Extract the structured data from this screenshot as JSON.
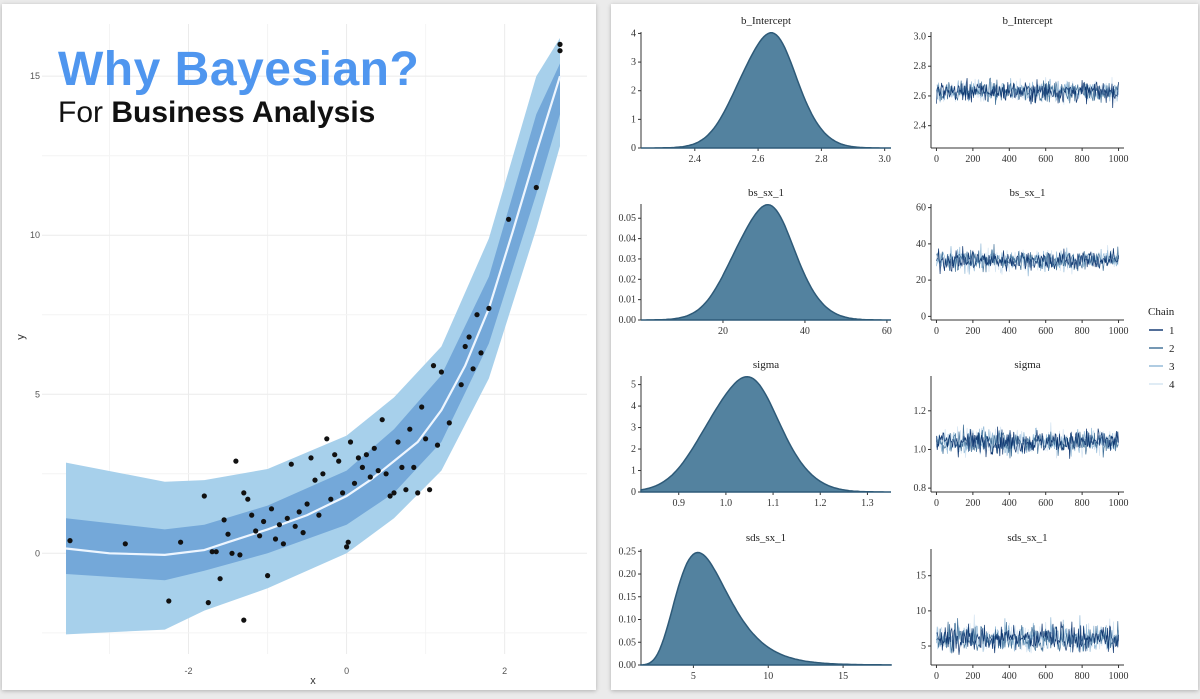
{
  "headline": {
    "main": "Why Bayesian?",
    "sub_prefix": "For ",
    "sub_bold": "Business Analysis"
  },
  "colors": {
    "outer_band": "#a7d0eb",
    "inner_band": "#74a8d9",
    "fit_line": "#eef6ff",
    "points": "#111111",
    "density_fill": "#53829f",
    "density_line": "#2e5a78",
    "chain_colors": [
      "#08306b",
      "#3a6b95",
      "#8fb7d6",
      "#d2e3f1"
    ],
    "headline_blue": "#4f96ef"
  },
  "chart_data": [
    {
      "id": "regression",
      "type": "scatter",
      "xlabel": "x",
      "ylabel": "y",
      "xlim": [
        -3.55,
        2.7
      ],
      "ylim": [
        -2.6,
        16.2
      ],
      "x_ticks": [
        -2,
        0,
        2
      ],
      "y_ticks": [
        0,
        5,
        10,
        15
      ],
      "grid": true,
      "fit_line": [
        [
          -3.55,
          0.15
        ],
        [
          -3.0,
          0.0
        ],
        [
          -2.3,
          -0.05
        ],
        [
          -1.8,
          0.1
        ],
        [
          -1.5,
          0.35
        ],
        [
          -1.0,
          0.75
        ],
        [
          -0.5,
          1.2
        ],
        [
          0.0,
          1.8
        ],
        [
          0.3,
          2.3
        ],
        [
          0.6,
          2.9
        ],
        [
          0.9,
          3.5
        ],
        [
          1.2,
          4.5
        ],
        [
          1.5,
          5.9
        ],
        [
          1.8,
          7.7
        ],
        [
          2.1,
          10.1
        ],
        [
          2.4,
          12.6
        ],
        [
          2.7,
          15.0
        ]
      ],
      "inner_band": [
        [
          -3.55,
          -0.65,
          1.1
        ],
        [
          -2.3,
          -0.85,
          0.75
        ],
        [
          -1.8,
          -0.55,
          0.9
        ],
        [
          -1.0,
          0.0,
          1.5
        ],
        [
          0.0,
          0.9,
          2.6
        ],
        [
          0.6,
          1.9,
          3.9
        ],
        [
          1.2,
          3.5,
          5.6
        ],
        [
          1.8,
          6.6,
          8.7
        ],
        [
          2.4,
          11.3,
          13.8
        ],
        [
          2.7,
          13.8,
          15.4
        ]
      ],
      "outer_band": [
        [
          -3.55,
          -2.55,
          2.85
        ],
        [
          -2.3,
          -2.4,
          2.25
        ],
        [
          -1.8,
          -1.8,
          2.3
        ],
        [
          -1.0,
          -1.1,
          2.65
        ],
        [
          0.0,
          0.0,
          3.7
        ],
        [
          0.6,
          1.1,
          4.9
        ],
        [
          1.2,
          2.6,
          6.5
        ],
        [
          1.8,
          5.5,
          9.9
        ],
        [
          2.4,
          10.2,
          15.0
        ],
        [
          2.7,
          12.8,
          16.2
        ]
      ],
      "points": [
        [
          -3.5,
          0.4
        ],
        [
          -2.8,
          0.3
        ],
        [
          -2.25,
          -1.5
        ],
        [
          -2.1,
          0.35
        ],
        [
          -1.8,
          1.8
        ],
        [
          -1.75,
          -1.55
        ],
        [
          -1.7,
          0.05
        ],
        [
          -1.65,
          0.05
        ],
        [
          -1.6,
          -0.8
        ],
        [
          -1.55,
          1.05
        ],
        [
          -1.5,
          0.6
        ],
        [
          -1.45,
          0.0
        ],
        [
          -1.4,
          2.9
        ],
        [
          -1.35,
          -0.05
        ],
        [
          -1.3,
          -2.1
        ],
        [
          -1.3,
          1.9
        ],
        [
          -1.25,
          1.7
        ],
        [
          -1.2,
          1.2
        ],
        [
          -1.15,
          0.7
        ],
        [
          -1.1,
          0.55
        ],
        [
          -1.05,
          1.0
        ],
        [
          -1.0,
          -0.7
        ],
        [
          -0.95,
          1.4
        ],
        [
          -0.9,
          0.45
        ],
        [
          -0.85,
          0.9
        ],
        [
          -0.8,
          0.3
        ],
        [
          -0.75,
          1.1
        ],
        [
          -0.7,
          2.8
        ],
        [
          -0.65,
          0.85
        ],
        [
          -0.6,
          1.3
        ],
        [
          -0.55,
          0.65
        ],
        [
          -0.5,
          1.55
        ],
        [
          -0.45,
          3.0
        ],
        [
          -0.4,
          2.3
        ],
        [
          -0.35,
          1.2
        ],
        [
          -0.3,
          2.5
        ],
        [
          -0.25,
          3.6
        ],
        [
          -0.2,
          1.7
        ],
        [
          -0.15,
          3.1
        ],
        [
          -0.1,
          2.9
        ],
        [
          -0.05,
          1.9
        ],
        [
          0.0,
          0.2
        ],
        [
          0.02,
          0.35
        ],
        [
          0.05,
          3.5
        ],
        [
          0.1,
          2.2
        ],
        [
          0.15,
          3.0
        ],
        [
          0.2,
          2.7
        ],
        [
          0.25,
          3.1
        ],
        [
          0.3,
          2.4
        ],
        [
          0.35,
          3.3
        ],
        [
          0.4,
          2.6
        ],
        [
          0.45,
          4.2
        ],
        [
          0.5,
          2.5
        ],
        [
          0.55,
          1.8
        ],
        [
          0.6,
          1.9
        ],
        [
          0.65,
          3.5
        ],
        [
          0.7,
          2.7
        ],
        [
          0.75,
          2.0
        ],
        [
          0.8,
          3.9
        ],
        [
          0.85,
          2.7
        ],
        [
          0.9,
          1.9
        ],
        [
          0.95,
          4.6
        ],
        [
          1.0,
          3.6
        ],
        [
          1.05,
          2.0
        ],
        [
          1.1,
          5.9
        ],
        [
          1.15,
          3.4
        ],
        [
          1.2,
          5.7
        ],
        [
          1.3,
          4.1
        ],
        [
          1.45,
          5.3
        ],
        [
          1.5,
          6.5
        ],
        [
          1.55,
          6.8
        ],
        [
          1.6,
          5.8
        ],
        [
          1.65,
          7.5
        ],
        [
          1.7,
          6.3
        ],
        [
          1.8,
          7.7
        ],
        [
          2.05,
          10.5
        ],
        [
          2.4,
          11.5
        ],
        [
          2.7,
          15.8
        ],
        [
          2.7,
          16.0
        ]
      ]
    },
    {
      "id": "density-b-intercept",
      "type": "area",
      "title": "b_Intercept",
      "xlim": [
        2.23,
        3.02
      ],
      "ylim": [
        0,
        4.05
      ],
      "x_ticks": [
        2.4,
        2.6,
        2.8,
        3.0
      ],
      "x_tick_labels": [
        "2.4",
        "2.6",
        "2.8",
        "3.0"
      ],
      "y_ticks": [
        0,
        1,
        2,
        3,
        4
      ],
      "y_tick_labels": [
        "0",
        "1",
        "2",
        "3",
        "4"
      ],
      "mean": 2.63,
      "sd": 0.09
    },
    {
      "id": "trace-b-intercept",
      "type": "line",
      "title": "b_Intercept",
      "xlim": [
        -30,
        1030
      ],
      "ylim": [
        2.25,
        3.03
      ],
      "x_ticks": [
        0,
        200,
        400,
        600,
        800,
        1000
      ],
      "x_tick_labels": [
        "0",
        "200",
        "400",
        "600",
        "800",
        "1000"
      ],
      "y_ticks": [
        2.4,
        2.6,
        2.8,
        3.0
      ],
      "y_tick_labels": [
        "2.4",
        "2.6",
        "2.8",
        "3.0"
      ],
      "center": 2.63,
      "spread": 0.09
    },
    {
      "id": "density-bs-sx-1",
      "type": "area",
      "title": "bs_sx_1",
      "xlim": [
        0,
        61
      ],
      "ylim": [
        0,
        0.057
      ],
      "x_ticks": [
        20,
        40,
        60
      ],
      "x_tick_labels": [
        "20",
        "40",
        "60"
      ],
      "y_ticks": [
        0,
        0.01,
        0.02,
        0.03,
        0.04,
        0.05
      ],
      "y_tick_labels": [
        "0.00",
        "0.01",
        "0.02",
        "0.03",
        "0.04",
        "0.05"
      ],
      "mean": 30,
      "sd": 7.3
    },
    {
      "id": "trace-bs-sx-1",
      "type": "line",
      "title": "bs_sx_1",
      "xlim": [
        -30,
        1030
      ],
      "ylim": [
        -2,
        62
      ],
      "x_ticks": [
        0,
        200,
        400,
        600,
        800,
        1000
      ],
      "x_tick_labels": [
        "0",
        "200",
        "400",
        "600",
        "800",
        "1000"
      ],
      "y_ticks": [
        0,
        20,
        40,
        60
      ],
      "y_tick_labels": [
        "0",
        "20",
        "40",
        "60"
      ],
      "center": 31,
      "spread": 7.5
    },
    {
      "id": "density-sigma",
      "type": "area",
      "title": "sigma",
      "xlim": [
        0.82,
        1.35
      ],
      "ylim": [
        0,
        5.4
      ],
      "x_ticks": [
        0.9,
        1.0,
        1.1,
        1.2,
        1.3
      ],
      "x_tick_labels": [
        "0.9",
        "1.0",
        "1.1",
        "1.2",
        "1.3"
      ],
      "y_ticks": [
        0,
        1,
        2,
        3,
        4,
        5
      ],
      "y_tick_labels": [
        "0",
        "1",
        "2",
        "3",
        "4",
        "5"
      ],
      "mean": 1.035,
      "sd": 0.076
    },
    {
      "id": "trace-sigma",
      "type": "line",
      "title": "sigma",
      "xlim": [
        -30,
        1030
      ],
      "ylim": [
        0.78,
        1.38
      ],
      "x_ticks": [
        0,
        200,
        400,
        600,
        800,
        1000
      ],
      "x_tick_labels": [
        "0",
        "200",
        "400",
        "600",
        "800",
        "1000"
      ],
      "y_ticks": [
        0.8,
        1.0,
        1.2
      ],
      "y_tick_labels": [
        "0.8",
        "1.0",
        "1.2"
      ],
      "center": 1.04,
      "spread": 0.08
    },
    {
      "id": "density-sds-sx-1",
      "type": "area",
      "title": "sds_sx_1",
      "xlim": [
        1.5,
        18.2
      ],
      "ylim": [
        0,
        0.255
      ],
      "x_ticks": [
        5,
        10,
        15
      ],
      "x_tick_labels": [
        "5",
        "10",
        "15"
      ],
      "y_ticks": [
        0,
        0.05,
        0.1,
        0.15,
        0.2,
        0.25
      ],
      "y_tick_labels": [
        "0.00",
        "0.05",
        "0.10",
        "0.15",
        "0.20",
        "0.25"
      ],
      "mode": 5.3,
      "scale": 0.33
    },
    {
      "id": "trace-sds-sx-1",
      "type": "line",
      "title": "sds_sx_1",
      "xlim": [
        -30,
        1030
      ],
      "ylim": [
        2.3,
        18.8
      ],
      "x_ticks": [
        0,
        200,
        400,
        600,
        800,
        1000
      ],
      "x_tick_labels": [
        "0",
        "200",
        "400",
        "600",
        "800",
        "1000"
      ],
      "y_ticks": [
        5,
        10,
        15
      ],
      "y_tick_labels": [
        "5",
        "10",
        "15"
      ],
      "center": 6.5,
      "spread": 2.5
    }
  ],
  "legend": {
    "title": "Chain",
    "items": [
      "1",
      "2",
      "3",
      "4"
    ]
  }
}
